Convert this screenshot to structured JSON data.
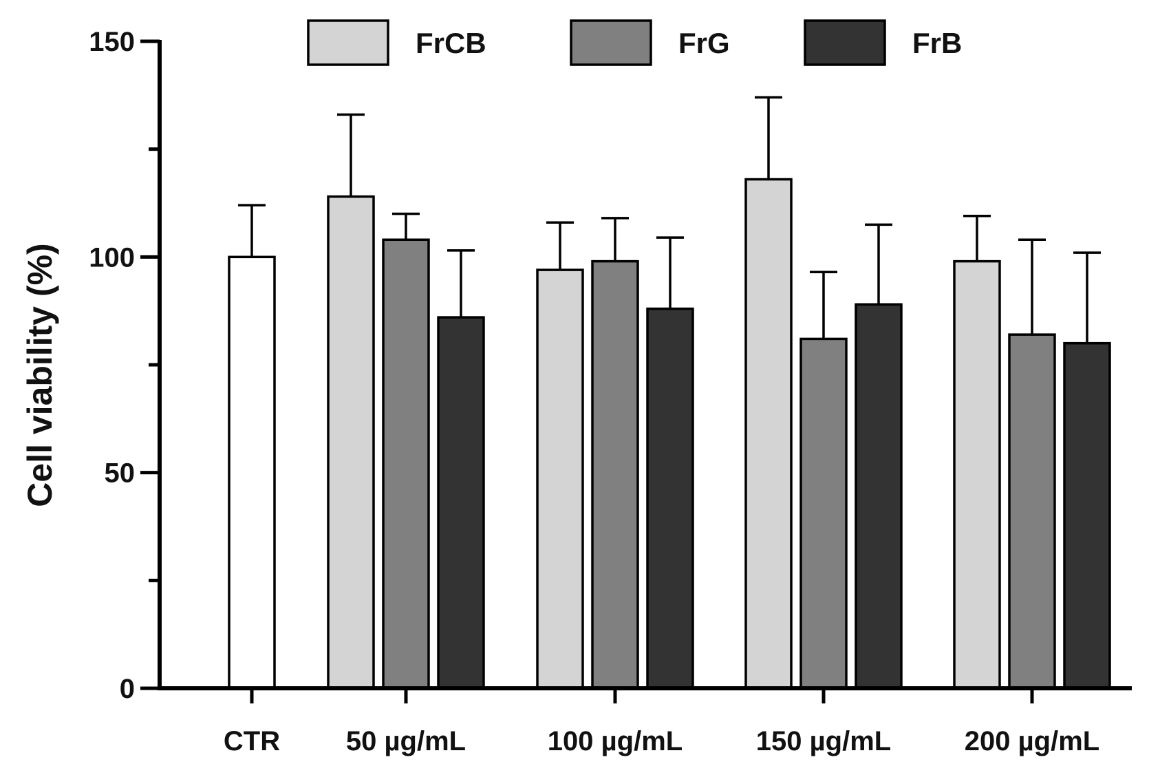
{
  "chart_data": {
    "type": "bar",
    "title": "",
    "xlabel": "",
    "ylabel": "Cell viability (%)",
    "ylim": [
      0,
      150
    ],
    "yticks": [
      0,
      50,
      100,
      150
    ],
    "minor_yticks": [
      25,
      75,
      125
    ],
    "legend_position": "top",
    "categories": [
      "CTR",
      "50 µg/mL",
      "100 µg/mL",
      "150 µg/mL",
      "200 µg/mL"
    ],
    "control": {
      "name": "CTR",
      "value": 100,
      "error": 12,
      "color": "#ffffff"
    },
    "series": [
      {
        "name": "FrCB",
        "color": "#d4d4d4",
        "values": [
          null,
          114,
          97,
          118,
          99
        ],
        "errors": [
          null,
          19,
          11,
          19,
          10.5
        ]
      },
      {
        "name": "FrG",
        "color": "#808080",
        "values": [
          null,
          104,
          99,
          81,
          82
        ],
        "errors": [
          null,
          6,
          10,
          15.5,
          22
        ]
      },
      {
        "name": "FrB",
        "color": "#333333",
        "values": [
          null,
          86,
          88,
          89,
          80
        ],
        "errors": [
          null,
          15.5,
          16.5,
          18.5,
          21
        ]
      }
    ]
  }
}
